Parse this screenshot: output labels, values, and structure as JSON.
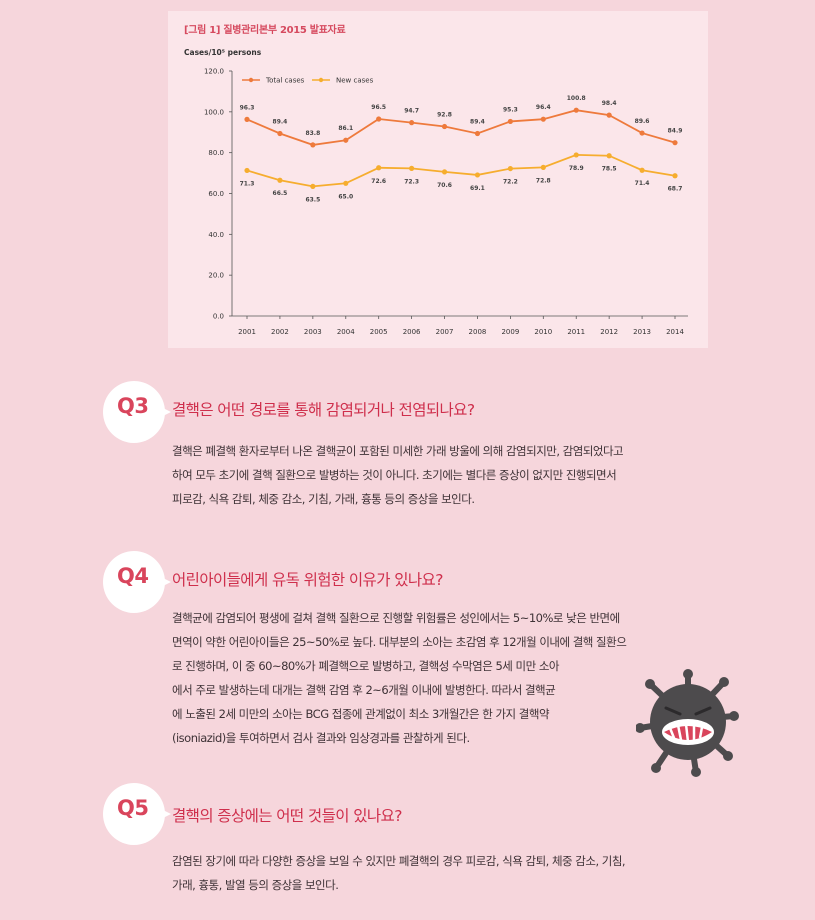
{
  "figure": {
    "caption": "[그림 1] 질병관리본부 2015 발표자료",
    "colors": {
      "total": "#ee7a3c",
      "new": "#f6ad2e",
      "caption": "#d64a5f",
      "panel": "#fbe6ea"
    }
  },
  "chart_data": {
    "type": "line",
    "ylabel": "Cases/10⁵ persons",
    "ylim": [
      0,
      120
    ],
    "yticks": [
      "0.0",
      "20.0",
      "40.0",
      "60.0",
      "80.0",
      "100.0",
      "120.0"
    ],
    "categories": [
      "2001",
      "2002",
      "2003",
      "2004",
      "2005",
      "2006",
      "2007",
      "2008",
      "2009",
      "2010",
      "2011",
      "2012",
      "2013",
      "2014"
    ],
    "legend_position": "top-left",
    "grid": false,
    "series": [
      {
        "name": "Total cases",
        "color": "#ee7a3c",
        "values": [
          96.3,
          89.4,
          83.8,
          86.1,
          96.5,
          94.7,
          92.8,
          89.4,
          95.3,
          96.4,
          100.8,
          98.4,
          89.6,
          84.9
        ],
        "labels": [
          "96.3",
          "89.4",
          "83.8",
          "86.1",
          "96.5",
          "94.7",
          "92.8",
          "89.4",
          "95.3",
          "96.4",
          "100.8",
          "98.4",
          "89.6",
          "84.9"
        ]
      },
      {
        "name": "New cases",
        "color": "#f6ad2e",
        "values": [
          71.3,
          66.5,
          63.5,
          65.0,
          72.6,
          72.3,
          70.6,
          69.1,
          72.2,
          72.8,
          78.9,
          78.5,
          71.4,
          68.7
        ],
        "labels": [
          "71.3",
          "66.5",
          "63.5",
          "65.0",
          "72.6",
          "72.3",
          "70.6",
          "69.1",
          "72.2",
          "72.8",
          "78.9",
          "78.5",
          "71.4",
          "68.7"
        ]
      }
    ]
  },
  "questions": [
    {
      "q": "Q3",
      "title": "결핵은 어떤 경로를 통해 감염되거나 전염되나요?",
      "lines": [
        "결핵은 폐결핵 환자로부터 나온 결핵균이 포함된 미세한 가래 방울에 의해 감염되지만, 감염되었다고",
        "하여 모두 초기에 결핵 질환으로 발병하는 것이 아니다. 초기에는 별다른 증상이 없지만 진행되면서",
        "피로감, 식욕 감퇴, 체중 감소, 기침, 가래, 흉통 등의 증상을 보인다."
      ]
    },
    {
      "q": "Q4",
      "title": "어린아이들에게 유독 위험한 이유가 있나요?",
      "lines": [
        "결핵균에 감염되어 평생에 걸쳐 결핵 질환으로 진행할 위험률은 성인에서는 5~10%로 낮은 반면에",
        "면역이 약한 어린아이들은 25~50%로 높다. 대부분의 소아는 초감염 후 12개월 이내에 결핵 질환으",
        "로 진행하며, 이 중 60~80%가 폐결핵으로 발병하고, 결핵성 수막염은 5세 미만 소아",
        "에서 주로 발생하는데 대개는 결핵 감염 후 2~6개월 이내에 발병한다. 따라서 결핵균",
        "에 노출된 2세 미만의 소아는 BCG 접종에 관계없이 최소 3개월간은 한 가지 결핵약",
        "(isoniazid)을 투여하면서 검사 결과와 임상경과를 관찰하게 된다."
      ]
    },
    {
      "q": "Q5",
      "title": "결핵의 증상에는 어떤 것들이 있나요?",
      "lines": [
        "감염된 장기에 따라 다양한 증상을 보일 수 있지만 폐결핵의 경우 피로감, 식욕 감퇴, 체중 감소, 기침,",
        "가래, 흉통, 발열 등의 증상을 보인다."
      ]
    }
  ]
}
